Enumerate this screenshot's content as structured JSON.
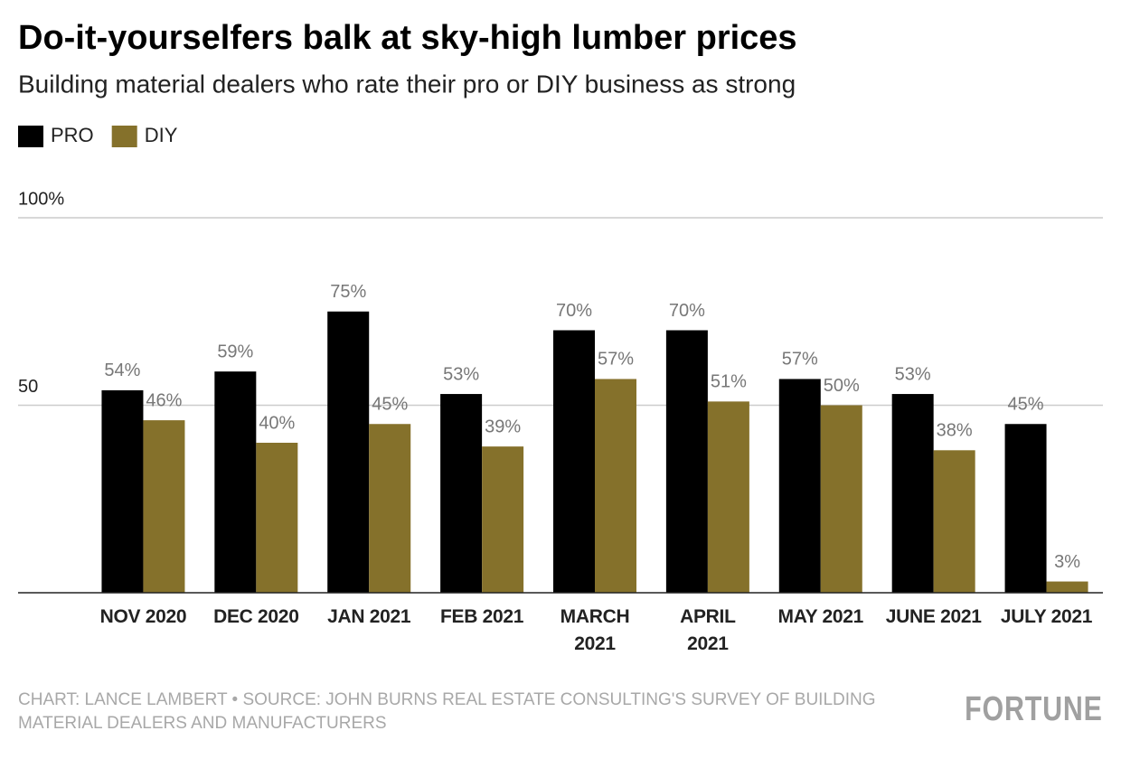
{
  "chart_data": {
    "type": "bar",
    "title": "Do-it-yourselfers balk at sky-high lumber prices",
    "subtitle": "Building material dealers who rate their pro or DIY business as strong",
    "categories": [
      "NOV 2020",
      "DEC 2020",
      "JAN 2021",
      "FEB 2021",
      "MARCH\n2021",
      "APRIL\n2021",
      "MAY 2021",
      "JUNE 2021",
      "JULY 2021"
    ],
    "series": [
      {
        "name": "PRO",
        "color": "#000000",
        "values": [
          54,
          59,
          75,
          53,
          70,
          70,
          57,
          53,
          45
        ],
        "value_labels": [
          "54%",
          "59%",
          "75%",
          "53%",
          "70%",
          "70%",
          "57%",
          "53%",
          "45%"
        ]
      },
      {
        "name": "DIY",
        "color": "#85712b",
        "values": [
          46,
          40,
          45,
          39,
          57,
          51,
          50,
          38,
          3
        ],
        "value_labels": [
          "46%",
          "40%",
          "45%",
          "39%",
          "57%",
          "51%",
          "50%",
          "38%",
          "3%"
        ]
      }
    ],
    "ylim": [
      0,
      100
    ],
    "yticks": [
      {
        "value": 50,
        "label": "50"
      },
      {
        "value": 100,
        "label": "100%"
      }
    ],
    "grid": true,
    "legend": "top-left",
    "source": "CHART: LANCE LAMBERT • SOURCE: JOHN BURNS REAL ESTATE CONSULTING'S SURVEY OF BUILDING MATERIAL DEALERS AND MANUFACTURERS",
    "logo": "FORTUNE"
  }
}
